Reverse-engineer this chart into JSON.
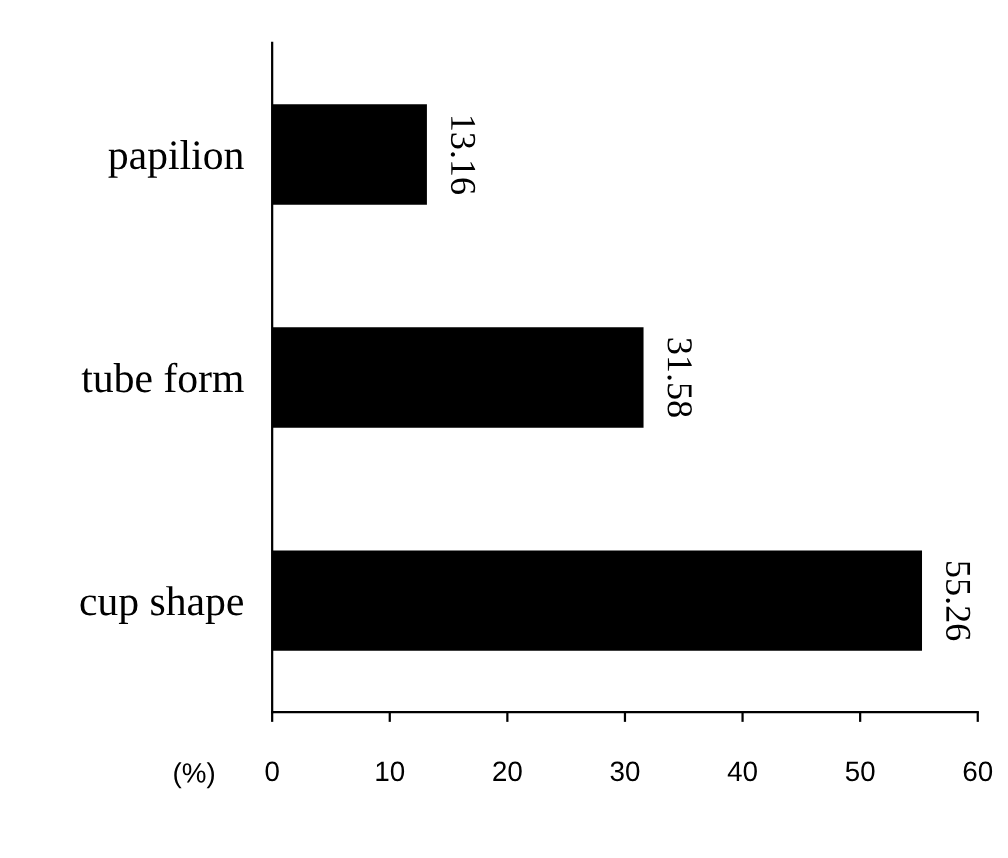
{
  "chart_data": {
    "type": "bar",
    "orientation": "horizontal",
    "xlabel": "(%)",
    "categories": [
      "papilion",
      "tube form",
      "cup shape"
    ],
    "values": [
      13.16,
      31.58,
      55.26
    ],
    "color": "#000000",
    "xlim": [
      0,
      60
    ],
    "xticks": [
      0,
      10,
      20,
      30,
      40,
      50,
      60
    ],
    "grid": false,
    "data_labels": true
  }
}
